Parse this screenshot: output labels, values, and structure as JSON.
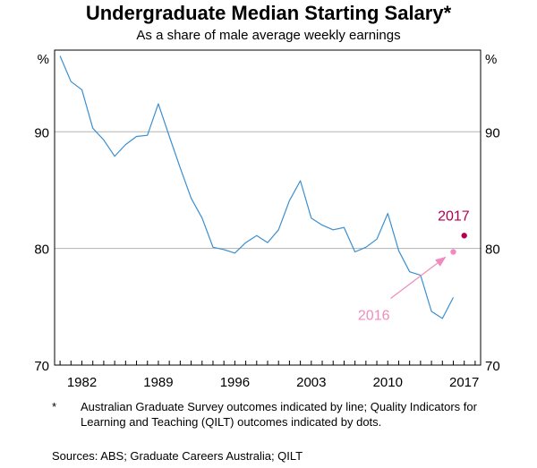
{
  "title": "Undergraduate Median Starting Salary*",
  "subtitle": "As a share of male average weekly earnings",
  "footnote": {
    "marker": "*",
    "text": "Australian Graduate Survey outcomes indicated by line; Quality Indicators for Learning and Teaching (QILT) outcomes indicated by dots."
  },
  "sources": "Sources:   ABS; Graduate Careers Australia; QILT",
  "colors": {
    "line": "#3a8fd0",
    "dot2016": "#f08bbf",
    "dot2017": "#b0004e",
    "grid": "#b3b3b3"
  },
  "chart_data": {
    "type": "line",
    "y_unit_label_left": "%",
    "y_unit_label_right": "%",
    "ylim": [
      70,
      97
    ],
    "yticks": [
      70,
      80,
      90
    ],
    "xlim": [
      1979.5,
      2018.5
    ],
    "xticks": [
      "1982",
      "1989",
      "1996",
      "2003",
      "2010",
      "2017"
    ],
    "grid": "horizontal",
    "series": [
      {
        "x": [
          1980,
          1981,
          1982,
          1983,
          1984,
          1985,
          1986,
          1987,
          1988,
          1989,
          1990,
          1991,
          1992,
          1993,
          1994,
          1995,
          1996,
          1997,
          1998,
          1999,
          2000,
          2001,
          2002,
          2003,
          2004,
          2005,
          2006,
          2007,
          2008,
          2009,
          2010,
          2011,
          2012,
          2013,
          2014,
          2015,
          2016
        ],
        "values": [
          96.5,
          94.3,
          93.6,
          90.3,
          89.3,
          87.9,
          88.9,
          89.6,
          89.7,
          92.4,
          89.6,
          86.9,
          84.3,
          82.6,
          80.1,
          79.9,
          79.6,
          80.5,
          81.1,
          80.5,
          81.6,
          84.1,
          85.8,
          82.6,
          82.0,
          81.6,
          81.8,
          79.7,
          80.1,
          80.8,
          83.0,
          79.8,
          78.0,
          77.7,
          74.6,
          74.0,
          75.8
        ]
      }
    ],
    "points": [
      {
        "label": "2016",
        "x": 2016,
        "value": 79.7
      },
      {
        "label": "2017",
        "x": 2017,
        "value": 81.1
      }
    ]
  }
}
